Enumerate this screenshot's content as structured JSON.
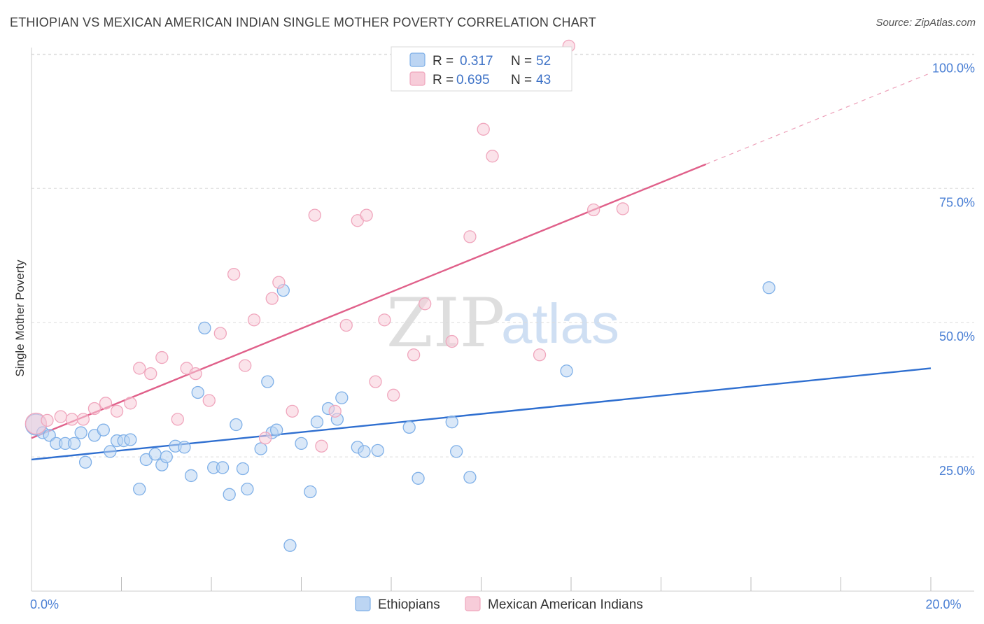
{
  "title": "ETHIOPIAN VS MEXICAN AMERICAN INDIAN SINGLE MOTHER POVERTY CORRELATION CHART",
  "source": "Source: ZipAtlas.com",
  "watermark": {
    "zip": "ZIP",
    "atlas": "atlas"
  },
  "chart_data": {
    "type": "scatter",
    "xlabel": "",
    "ylabel": "Single Mother Poverty",
    "xlim": [
      0,
      20
    ],
    "ylim": [
      0,
      102
    ],
    "x_tick_labels": [
      {
        "value": 0,
        "label": "0.0%"
      },
      {
        "value": 20,
        "label": "20.0%"
      }
    ],
    "x_minor_ticks": [
      2,
      4,
      6,
      8,
      10,
      12,
      14,
      16,
      18,
      20
    ],
    "y_ticks": [
      {
        "value": 25,
        "label": "25.0%"
      },
      {
        "value": 50,
        "label": "50.0%"
      },
      {
        "value": 75,
        "label": "75.0%"
      },
      {
        "value": 100,
        "label": "100.0%"
      }
    ],
    "grid": true,
    "legend": [
      {
        "r_label": "R =",
        "r_value": "0.317",
        "n_label": "N =",
        "n_value": "52"
      },
      {
        "r_label": "R =",
        "r_value": "0.695",
        "n_label": "N =",
        "n_value": "43"
      }
    ],
    "series": [
      {
        "name": "Ethiopians",
        "color": "#7fb0e8",
        "fill": "#bcd5f3",
        "line_color": "#2f6fd0",
        "trend": {
          "x": [
            0,
            20
          ],
          "y": [
            24.5,
            41.5
          ]
        },
        "points": [
          {
            "x": 0.1,
            "y": 31.0,
            "big": true
          },
          {
            "x": 0.25,
            "y": 29.5
          },
          {
            "x": 0.4,
            "y": 29.0
          },
          {
            "x": 0.55,
            "y": 27.5
          },
          {
            "x": 0.75,
            "y": 27.5
          },
          {
            "x": 0.95,
            "y": 27.5
          },
          {
            "x": 1.1,
            "y": 29.5
          },
          {
            "x": 1.2,
            "y": 24.0
          },
          {
            "x": 1.4,
            "y": 29.0
          },
          {
            "x": 1.6,
            "y": 30.0
          },
          {
            "x": 1.75,
            "y": 26.0
          },
          {
            "x": 1.9,
            "y": 28.0
          },
          {
            "x": 2.05,
            "y": 28.0
          },
          {
            "x": 2.2,
            "y": 28.2
          },
          {
            "x": 2.4,
            "y": 19.0
          },
          {
            "x": 2.55,
            "y": 24.5
          },
          {
            "x": 2.75,
            "y": 25.5
          },
          {
            "x": 2.9,
            "y": 23.5
          },
          {
            "x": 3.0,
            "y": 25.0
          },
          {
            "x": 3.2,
            "y": 27.0
          },
          {
            "x": 3.4,
            "y": 26.8
          },
          {
            "x": 3.55,
            "y": 21.5
          },
          {
            "x": 3.7,
            "y": 37.0
          },
          {
            "x": 3.85,
            "y": 49.0
          },
          {
            "x": 4.05,
            "y": 23.0
          },
          {
            "x": 4.25,
            "y": 23.0
          },
          {
            "x": 4.4,
            "y": 18.0
          },
          {
            "x": 4.55,
            "y": 31.0
          },
          {
            "x": 4.7,
            "y": 22.8
          },
          {
            "x": 4.8,
            "y": 19.0
          },
          {
            "x": 5.1,
            "y": 26.5
          },
          {
            "x": 5.25,
            "y": 39.0
          },
          {
            "x": 5.35,
            "y": 29.5
          },
          {
            "x": 5.45,
            "y": 30.0
          },
          {
            "x": 5.6,
            "y": 56.0
          },
          {
            "x": 5.75,
            "y": 8.5
          },
          {
            "x": 6.0,
            "y": 27.5
          },
          {
            "x": 6.2,
            "y": 18.5
          },
          {
            "x": 6.35,
            "y": 31.5
          },
          {
            "x": 6.6,
            "y": 34.0
          },
          {
            "x": 6.8,
            "y": 32.0
          },
          {
            "x": 6.9,
            "y": 36.0
          },
          {
            "x": 7.25,
            "y": 26.8
          },
          {
            "x": 7.4,
            "y": 26.0
          },
          {
            "x": 7.7,
            "y": 26.2
          },
          {
            "x": 8.4,
            "y": 30.5
          },
          {
            "x": 8.6,
            "y": 21.0
          },
          {
            "x": 9.35,
            "y": 31.5
          },
          {
            "x": 9.45,
            "y": 26.0
          },
          {
            "x": 9.75,
            "y": 21.2
          },
          {
            "x": 11.9,
            "y": 41.0
          },
          {
            "x": 16.4,
            "y": 56.5
          }
        ]
      },
      {
        "name": "Mexican American Indians",
        "color": "#f0a6bd",
        "fill": "#f7ccd9",
        "line_color": "#e0608a",
        "trend": {
          "x": [
            0,
            15.0
          ],
          "y": [
            28.5,
            79.5
          ]
        },
        "trend_dashed": {
          "x": [
            15.0,
            20
          ],
          "y": [
            79.5,
            96.5
          ]
        },
        "points": [
          {
            "x": 0.1,
            "y": 31.2,
            "big": true
          },
          {
            "x": 0.35,
            "y": 31.8
          },
          {
            "x": 0.65,
            "y": 32.5
          },
          {
            "x": 0.9,
            "y": 32.0
          },
          {
            "x": 1.15,
            "y": 32.0
          },
          {
            "x": 1.4,
            "y": 34.0
          },
          {
            "x": 1.65,
            "y": 35.0
          },
          {
            "x": 1.9,
            "y": 33.5
          },
          {
            "x": 2.2,
            "y": 35.0
          },
          {
            "x": 2.4,
            "y": 41.5
          },
          {
            "x": 2.65,
            "y": 40.5
          },
          {
            "x": 2.9,
            "y": 43.5
          },
          {
            "x": 3.25,
            "y": 32.0
          },
          {
            "x": 3.45,
            "y": 41.5
          },
          {
            "x": 3.65,
            "y": 40.5
          },
          {
            "x": 3.95,
            "y": 35.5
          },
          {
            "x": 4.2,
            "y": 48.0
          },
          {
            "x": 4.5,
            "y": 59.0
          },
          {
            "x": 4.75,
            "y": 42.0
          },
          {
            "x": 4.95,
            "y": 50.5
          },
          {
            "x": 5.2,
            "y": 28.5
          },
          {
            "x": 5.35,
            "y": 54.5
          },
          {
            "x": 5.5,
            "y": 57.5
          },
          {
            "x": 5.8,
            "y": 33.5
          },
          {
            "x": 6.3,
            "y": 70.0
          },
          {
            "x": 6.45,
            "y": 27.0
          },
          {
            "x": 6.75,
            "y": 33.5
          },
          {
            "x": 7.0,
            "y": 49.5
          },
          {
            "x": 7.25,
            "y": 69.0
          },
          {
            "x": 7.45,
            "y": 70.0
          },
          {
            "x": 7.65,
            "y": 39.0
          },
          {
            "x": 7.85,
            "y": 50.5
          },
          {
            "x": 8.05,
            "y": 36.5
          },
          {
            "x": 8.5,
            "y": 44.0
          },
          {
            "x": 8.75,
            "y": 53.5
          },
          {
            "x": 9.35,
            "y": 46.5
          },
          {
            "x": 9.75,
            "y": 66.0
          },
          {
            "x": 10.05,
            "y": 86.0
          },
          {
            "x": 10.25,
            "y": 81.0
          },
          {
            "x": 11.3,
            "y": 44.0
          },
          {
            "x": 11.95,
            "y": 101.5
          },
          {
            "x": 12.5,
            "y": 71.0
          },
          {
            "x": 13.15,
            "y": 71.2
          }
        ]
      }
    ]
  }
}
